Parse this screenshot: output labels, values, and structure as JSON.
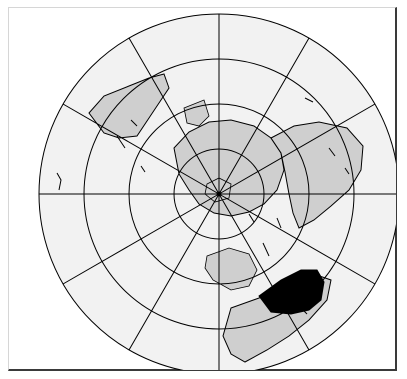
{
  "map": {
    "projection": "polar azimuthal",
    "colors": {
      "background": "#ffffff",
      "ocean": "#f2f2f2",
      "land": "#cfcfcf",
      "highlight_land": "#000000",
      "graticule": "#000000"
    },
    "land_regions": [
      "north-america-land",
      "greenland-land",
      "eurasia-land",
      "africa-land",
      "australia-land",
      "south-america-land",
      "highlighted-region",
      "antarctica-land"
    ],
    "graticule": {
      "latitude_rings": 4,
      "meridian_lines": 12
    }
  }
}
